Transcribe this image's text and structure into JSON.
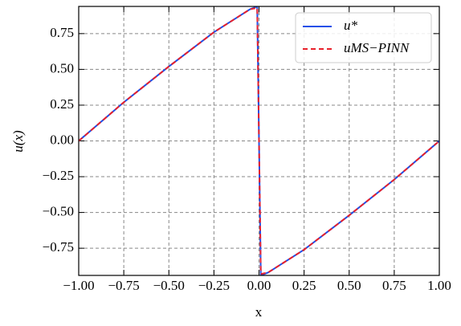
{
  "chart_data": {
    "type": "line",
    "x_label": "x",
    "y_label": "u(x)",
    "x": [
      -1,
      -0.75,
      -0.5,
      -0.25,
      -0.1,
      -0.05,
      -0.01,
      0,
      0.01,
      0.05,
      0.1,
      0.25,
      0.5,
      0.75,
      1
    ],
    "series": [
      {
        "name": "u*",
        "color": "#1f4fe8",
        "dash": false,
        "values": [
          0,
          0.27,
          0.52,
          0.76,
          0.88,
          0.92,
          0.94,
          0,
          -0.94,
          -0.92,
          -0.88,
          -0.76,
          -0.52,
          -0.27,
          0
        ]
      },
      {
        "name": "uMS−PINN",
        "color": "#e8202a",
        "dash": true,
        "values": [
          0,
          0.27,
          0.52,
          0.76,
          0.88,
          0.92,
          0.93,
          0,
          -0.93,
          -0.92,
          -0.88,
          -0.76,
          -0.52,
          -0.27,
          0
        ]
      }
    ],
    "xlim": [
      -1,
      1
    ],
    "ylim": [
      -0.94,
      0.94
    ],
    "xticks": [
      {
        "value": -1,
        "label": "−1.00"
      },
      {
        "value": -0.75,
        "label": "−0.75"
      },
      {
        "value": -0.5,
        "label": "−0.50"
      },
      {
        "value": -0.25,
        "label": "−0.25"
      },
      {
        "value": 0,
        "label": "0.00"
      },
      {
        "value": 0.25,
        "label": "0.25"
      },
      {
        "value": 0.5,
        "label": "0.50"
      },
      {
        "value": 0.75,
        "label": "0.75"
      },
      {
        "value": 1,
        "label": "1.00"
      }
    ],
    "yticks": [
      {
        "value": -0.75,
        "label": "−0.75"
      },
      {
        "value": -0.5,
        "label": "−0.50"
      },
      {
        "value": -0.25,
        "label": "−0.25"
      },
      {
        "value": 0,
        "label": "0.00"
      },
      {
        "value": 0.25,
        "label": "0.25"
      },
      {
        "value": 0.5,
        "label": "0.50"
      },
      {
        "value": 0.75,
        "label": "0.75"
      }
    ],
    "grid": true,
    "legend": "upper right"
  }
}
